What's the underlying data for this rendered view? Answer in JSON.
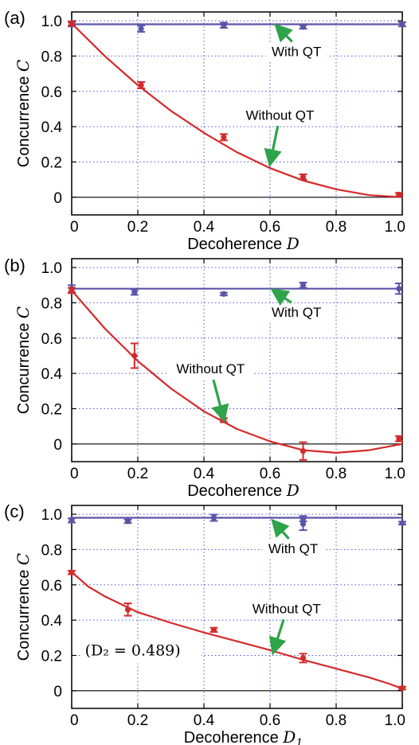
{
  "colors": {
    "with_qt": "#5b55a8",
    "without_qt": "#d52a2a",
    "arrow": "#2ea34a",
    "grid": "#4f5bd5"
  },
  "chart_data": [
    {
      "panel_label": "(a)",
      "type": "scatter",
      "xlabel": "Decoherence",
      "xlabel_symbol": "D",
      "xlabel_subscript": "",
      "ylabel": "Concurrence",
      "ylabel_symbol": "C",
      "xlim": [
        0,
        1
      ],
      "ylim": [
        -0.1,
        1.05
      ],
      "x_ticks": [
        0,
        0.2,
        0.4,
        0.6,
        0.8,
        1.0
      ],
      "x_tick_labels": [
        "0",
        "0.2",
        "0.4",
        "0.6",
        "0.8",
        "1.0"
      ],
      "y_ticks": [
        0,
        0.2,
        0.4,
        0.6,
        0.8,
        1.0
      ],
      "y_tick_labels": [
        "0",
        "0.2",
        "0.4",
        "0.6",
        "0.8",
        "1.0"
      ],
      "grid": true,
      "series": [
        {
          "name": "With QT",
          "color_key": "with_qt",
          "x": [
            0.0,
            0.21,
            0.46,
            0.7,
            1.0
          ],
          "y": [
            0.98,
            0.955,
            0.975,
            0.965,
            0.98
          ],
          "err": [
            0.012,
            0.018,
            0.015,
            0.01,
            0.012
          ],
          "fit": {
            "kind": "constant",
            "value": 0.98
          }
        },
        {
          "name": "Without QT",
          "color_key": "without_qt",
          "x": [
            0.0,
            0.21,
            0.46,
            0.7,
            0.99
          ],
          "y": [
            0.985,
            0.635,
            0.34,
            0.115,
            0.015
          ],
          "err": [
            0.012,
            0.018,
            0.018,
            0.015,
            0.01
          ],
          "fit": {
            "kind": "polyline",
            "x": [
              0.0,
              0.1,
              0.2,
              0.3,
              0.4,
              0.5,
              0.6,
              0.7,
              0.8,
              0.9,
              1.0
            ],
            "y": [
              0.985,
              0.8,
              0.635,
              0.49,
              0.365,
              0.255,
              0.165,
              0.095,
              0.045,
              0.012,
              0.0
            ]
          }
        }
      ],
      "annotations": [
        {
          "text": "With QT",
          "x": 0.68,
          "y": 0.8,
          "arrow_to": [
            0.62,
            0.97
          ]
        },
        {
          "text": "Without QT",
          "x": 0.63,
          "y": 0.44,
          "arrow_to": [
            0.6,
            0.19
          ]
        }
      ],
      "note": ""
    },
    {
      "panel_label": "(b)",
      "type": "scatter",
      "xlabel": "Decoherence",
      "xlabel_symbol": "D",
      "xlabel_subscript": "",
      "ylabel": "Concurrence",
      "ylabel_symbol": "C",
      "xlim": [
        0,
        1
      ],
      "ylim": [
        -0.1,
        1.05
      ],
      "x_ticks": [
        0,
        0.2,
        0.4,
        0.6,
        0.8,
        1.0
      ],
      "x_tick_labels": [
        "0",
        "0.2",
        "0.4",
        "0.6",
        "0.8",
        "1.0"
      ],
      "y_ticks": [
        0,
        0.2,
        0.4,
        0.6,
        0.8,
        1.0
      ],
      "y_tick_labels": [
        "0",
        "0.2",
        "0.4",
        "0.6",
        "0.8",
        "1.0"
      ],
      "grid": true,
      "series": [
        {
          "name": "With QT",
          "color_key": "with_qt",
          "x": [
            0.0,
            0.19,
            0.46,
            0.7,
            0.99
          ],
          "y": [
            0.88,
            0.86,
            0.85,
            0.9,
            0.88
          ],
          "err": [
            0.02,
            0.015,
            0.008,
            0.015,
            0.03
          ],
          "fit": {
            "kind": "constant",
            "value": 0.88
          }
        },
        {
          "name": "Without QT",
          "color_key": "without_qt",
          "x": [
            0.0,
            0.19,
            0.46,
            0.7,
            0.99
          ],
          "y": [
            0.87,
            0.5,
            0.135,
            -0.04,
            0.03
          ],
          "err": [
            0.015,
            0.07,
            0.012,
            0.05,
            0.015
          ],
          "fit": {
            "kind": "polyline",
            "x": [
              0.0,
              0.1,
              0.2,
              0.3,
              0.4,
              0.5,
              0.6,
              0.7,
              0.8,
              0.9,
              1.0
            ],
            "y": [
              0.87,
              0.655,
              0.47,
              0.315,
              0.185,
              0.085,
              0.015,
              -0.035,
              -0.05,
              -0.035,
              0.0
            ]
          }
        }
      ],
      "annotations": [
        {
          "text": "With QT",
          "x": 0.68,
          "y": 0.72,
          "arrow_to": [
            0.61,
            0.87
          ]
        },
        {
          "text": "Without QT",
          "x": 0.42,
          "y": 0.4,
          "arrow_to": [
            0.46,
            0.14
          ]
        }
      ],
      "note": ""
    },
    {
      "panel_label": "(c)",
      "type": "scatter",
      "xlabel": "Decoherence",
      "xlabel_symbol": "D",
      "xlabel_subscript": "1",
      "ylabel": "Concurrence",
      "ylabel_symbol": "C",
      "xlim": [
        0,
        1
      ],
      "ylim": [
        -0.1,
        1.05
      ],
      "x_ticks": [
        0,
        0.2,
        0.4,
        0.6,
        0.8,
        1.0
      ],
      "x_tick_labels": [
        "0",
        "0.2",
        "0.4",
        "0.6",
        "0.8",
        "1.0"
      ],
      "y_ticks": [
        0,
        0.2,
        0.4,
        0.6,
        0.8,
        1.0
      ],
      "y_tick_labels": [
        "0",
        "0.2",
        "0.4",
        "0.6",
        "0.8",
        "1.0"
      ],
      "grid": true,
      "series": [
        {
          "name": "With QT",
          "color_key": "with_qt",
          "x": [
            0.0,
            0.17,
            0.43,
            0.7,
            0.7,
            1.0
          ],
          "y": [
            0.965,
            0.96,
            0.98,
            0.975,
            0.945,
            0.95
          ],
          "err": [
            0.012,
            0.01,
            0.018,
            0.015,
            0.035,
            0.008
          ],
          "fit": {
            "kind": "constant",
            "value": 0.98
          }
        },
        {
          "name": "Without QT",
          "color_key": "without_qt",
          "x": [
            0.0,
            0.17,
            0.43,
            0.7,
            1.0
          ],
          "y": [
            0.67,
            0.46,
            0.345,
            0.185,
            0.015
          ],
          "err": [
            0.01,
            0.035,
            0.012,
            0.025,
            0.008
          ],
          "fit": {
            "kind": "polyline",
            "x": [
              0.0,
              0.02,
              0.05,
              0.1,
              0.2,
              0.3,
              0.4,
              0.5,
              0.6,
              0.7,
              0.8,
              0.9,
              0.96,
              1.0
            ],
            "y": [
              0.67,
              0.64,
              0.59,
              0.535,
              0.445,
              0.385,
              0.33,
              0.28,
              0.23,
              0.175,
              0.125,
              0.075,
              0.04,
              0.012
            ]
          }
        }
      ],
      "annotations": [
        {
          "text": "With QT",
          "x": 0.67,
          "y": 0.78,
          "arrow_to": [
            0.61,
            0.96
          ]
        },
        {
          "text": "Without QT",
          "x": 0.65,
          "y": 0.44,
          "arrow_to": [
            0.61,
            0.22
          ]
        }
      ],
      "note": "(D₂ = 0.489)"
    }
  ]
}
